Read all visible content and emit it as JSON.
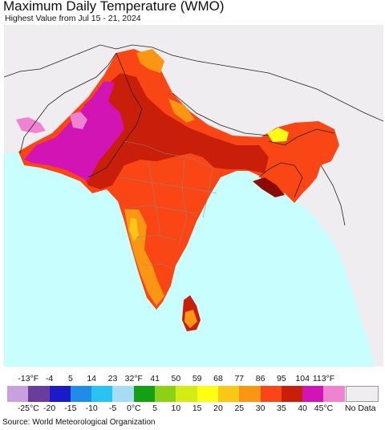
{
  "title": "Maximum Daily Temperature (WMO)",
  "subtitle": "Highest Value from Jul 15 - 21, 2024",
  "source": "Source: World Meteorological Organization",
  "legend": {
    "fahrenheit_ticks": [
      "-13°F",
      "-4",
      "5",
      "14",
      "23",
      "32°F",
      "41",
      "50",
      "59",
      "68",
      "77",
      "86",
      "95",
      "104",
      "113°F"
    ],
    "celsius_ticks": [
      "-25°C",
      "-20",
      "-15",
      "-10",
      "-5",
      "0°C",
      "5",
      "10",
      "15",
      "20",
      "25",
      "30",
      "35",
      "40",
      "45°C"
    ],
    "colors": [
      "#c8a0e0",
      "#6a3c9c",
      "#1a1ac8",
      "#1e8ce8",
      "#28c4f0",
      "#a8dcf4",
      "#14a014",
      "#8cd214",
      "#d2ec14",
      "#ffff14",
      "#fac814",
      "#fa9614",
      "#fa4614",
      "#c81e0a",
      "#d214b4",
      "#f082d2"
    ],
    "no_data_label": "No Data",
    "no_data_color": "#f0edf1"
  },
  "map": {
    "ocean_color": "#c8fffe",
    "land_no_data_color": "#f0edf1",
    "region_colors": {
      "extreme_heat": "#d214b4",
      "very_hot": "#c81e0a",
      "hot": "#fa4614",
      "warm": "#fa9614",
      "mild": "#fac814",
      "cool": "#ffff14"
    }
  }
}
